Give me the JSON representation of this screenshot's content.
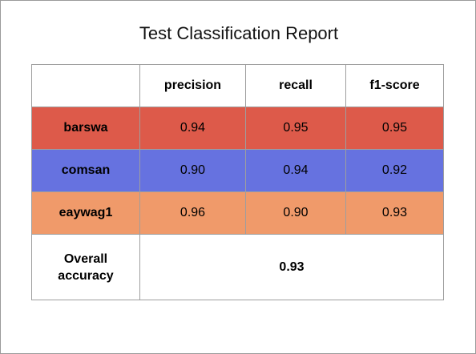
{
  "chart_data": {
    "type": "table",
    "title": "Test Classification Report",
    "columns": [
      "",
      "precision",
      "recall",
      "f1-score"
    ],
    "rows": [
      {
        "label": "barswa",
        "values": [
          "0.94",
          "0.95",
          "0.95"
        ],
        "color": "#dd5a4a"
      },
      {
        "label": "comsan",
        "values": [
          "0.90",
          "0.94",
          "0.92"
        ],
        "color": "#6672e0"
      },
      {
        "label": "eaywag1",
        "values": [
          "0.96",
          "0.90",
          "0.93"
        ],
        "color": "#f09a6a"
      }
    ],
    "accuracy": {
      "label_line1": "Overall",
      "label_line2": "accuracy",
      "value": "0.93"
    }
  }
}
